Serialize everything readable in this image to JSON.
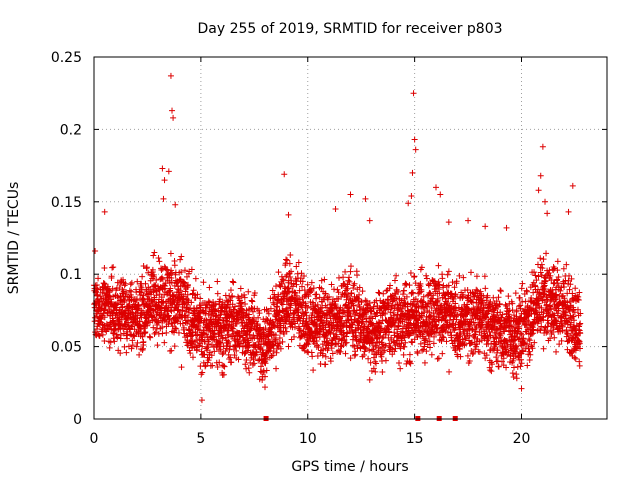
{
  "chart_data": {
    "type": "scatter",
    "title": "Day 255 of 2019, SRMTID for receiver p803",
    "xlabel": "GPS time / hours",
    "ylabel": "SRMTID / TECUs",
    "xlim": [
      0,
      24
    ],
    "ylim": [
      0,
      0.25
    ],
    "xticks": [
      0,
      5,
      10,
      15,
      20
    ],
    "xtick_labels": [
      "0",
      "5",
      "10",
      "15",
      "20"
    ],
    "yticks": [
      0,
      0.05,
      0.1,
      0.15,
      0.2,
      0.25
    ],
    "ytick_labels": [
      "0",
      "0.05",
      "0.1",
      "0.15",
      "0.2",
      "0.25"
    ],
    "grid": true,
    "marker": "+",
    "color": "#dd0000",
    "series": [
      {
        "name": "SRMTID",
        "outliers": [
          {
            "x": 3.6,
            "y": 0.237
          },
          {
            "x": 3.65,
            "y": 0.213
          },
          {
            "x": 3.7,
            "y": 0.208
          },
          {
            "x": 3.2,
            "y": 0.173
          },
          {
            "x": 3.3,
            "y": 0.165
          },
          {
            "x": 3.5,
            "y": 0.171
          },
          {
            "x": 3.25,
            "y": 0.152
          },
          {
            "x": 3.8,
            "y": 0.148
          },
          {
            "x": 0.5,
            "y": 0.143
          },
          {
            "x": 0.05,
            "y": 0.116
          },
          {
            "x": 5.05,
            "y": 0.013
          },
          {
            "x": 8.9,
            "y": 0.169
          },
          {
            "x": 9.1,
            "y": 0.141
          },
          {
            "x": 11.3,
            "y": 0.145
          },
          {
            "x": 12.0,
            "y": 0.155
          },
          {
            "x": 12.7,
            "y": 0.152
          },
          {
            "x": 12.9,
            "y": 0.137
          },
          {
            "x": 14.95,
            "y": 0.225
          },
          {
            "x": 15.0,
            "y": 0.193
          },
          {
            "x": 15.05,
            "y": 0.186
          },
          {
            "x": 14.9,
            "y": 0.17
          },
          {
            "x": 14.85,
            "y": 0.154
          },
          {
            "x": 14.7,
            "y": 0.149
          },
          {
            "x": 16.0,
            "y": 0.16
          },
          {
            "x": 16.2,
            "y": 0.155
          },
          {
            "x": 16.6,
            "y": 0.136
          },
          {
            "x": 17.5,
            "y": 0.137
          },
          {
            "x": 18.3,
            "y": 0.133
          },
          {
            "x": 19.3,
            "y": 0.132
          },
          {
            "x": 21.0,
            "y": 0.188
          },
          {
            "x": 20.9,
            "y": 0.168
          },
          {
            "x": 20.8,
            "y": 0.158
          },
          {
            "x": 21.1,
            "y": 0.15
          },
          {
            "x": 21.2,
            "y": 0.142
          },
          {
            "x": 22.4,
            "y": 0.161
          },
          {
            "x": 22.2,
            "y": 0.143
          },
          {
            "x": 12.9,
            "y": 0.027
          },
          {
            "x": 8.0,
            "y": 0.022
          },
          {
            "x": 20.0,
            "y": 0.021
          }
        ],
        "band_hourly": [
          {
            "h": 0,
            "mean": 0.078,
            "spread": 0.022
          },
          {
            "h": 1,
            "mean": 0.074,
            "spread": 0.025
          },
          {
            "h": 2,
            "mean": 0.072,
            "spread": 0.026
          },
          {
            "h": 3,
            "mean": 0.085,
            "spread": 0.03
          },
          {
            "h": 4,
            "mean": 0.078,
            "spread": 0.032
          },
          {
            "h": 5,
            "mean": 0.062,
            "spread": 0.028
          },
          {
            "h": 6,
            "mean": 0.064,
            "spread": 0.028
          },
          {
            "h": 7,
            "mean": 0.066,
            "spread": 0.026
          },
          {
            "h": 8,
            "mean": 0.05,
            "spread": 0.025
          },
          {
            "h": 9,
            "mean": 0.085,
            "spread": 0.03
          },
          {
            "h": 10,
            "mean": 0.068,
            "spread": 0.025
          },
          {
            "h": 11,
            "mean": 0.065,
            "spread": 0.027
          },
          {
            "h": 12,
            "mean": 0.075,
            "spread": 0.03
          },
          {
            "h": 13,
            "mean": 0.06,
            "spread": 0.028
          },
          {
            "h": 14,
            "mean": 0.068,
            "spread": 0.028
          },
          {
            "h": 15,
            "mean": 0.07,
            "spread": 0.03
          },
          {
            "h": 16,
            "mean": 0.075,
            "spread": 0.03
          },
          {
            "h": 17,
            "mean": 0.066,
            "spread": 0.028
          },
          {
            "h": 18,
            "mean": 0.072,
            "spread": 0.027
          },
          {
            "h": 19,
            "mean": 0.06,
            "spread": 0.026
          },
          {
            "h": 20,
            "mean": 0.06,
            "spread": 0.028
          },
          {
            "h": 21,
            "mean": 0.085,
            "spread": 0.03
          },
          {
            "h": 22,
            "mean": 0.075,
            "spread": 0.028
          },
          {
            "h": 22.75,
            "mean": 0.06,
            "spread": 0.025
          }
        ],
        "band_end_hour": 22.75,
        "zero_value_hours": [
          8.05,
          15.15,
          16.15,
          16.9
        ]
      }
    ]
  }
}
